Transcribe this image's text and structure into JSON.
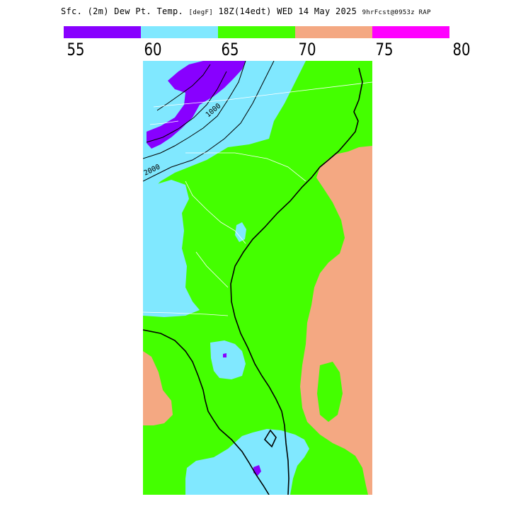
{
  "title": {
    "main": "Sfc. (2m) Dew Pt. Temp.",
    "units": "[degF]",
    "time": "18Z(14edt) WED 14 May 2025",
    "forecast": "9hrFcst@0953z RAP"
  },
  "legend": {
    "colors": [
      "#8800ff",
      "#80e8ff",
      "#44ff00",
      "#f4a882",
      "#ff00ff"
    ],
    "ticks": [
      "55",
      "60",
      "65",
      "70",
      "75",
      "80"
    ]
  },
  "map": {
    "contour_labels": [
      "1000",
      "2000"
    ]
  }
}
